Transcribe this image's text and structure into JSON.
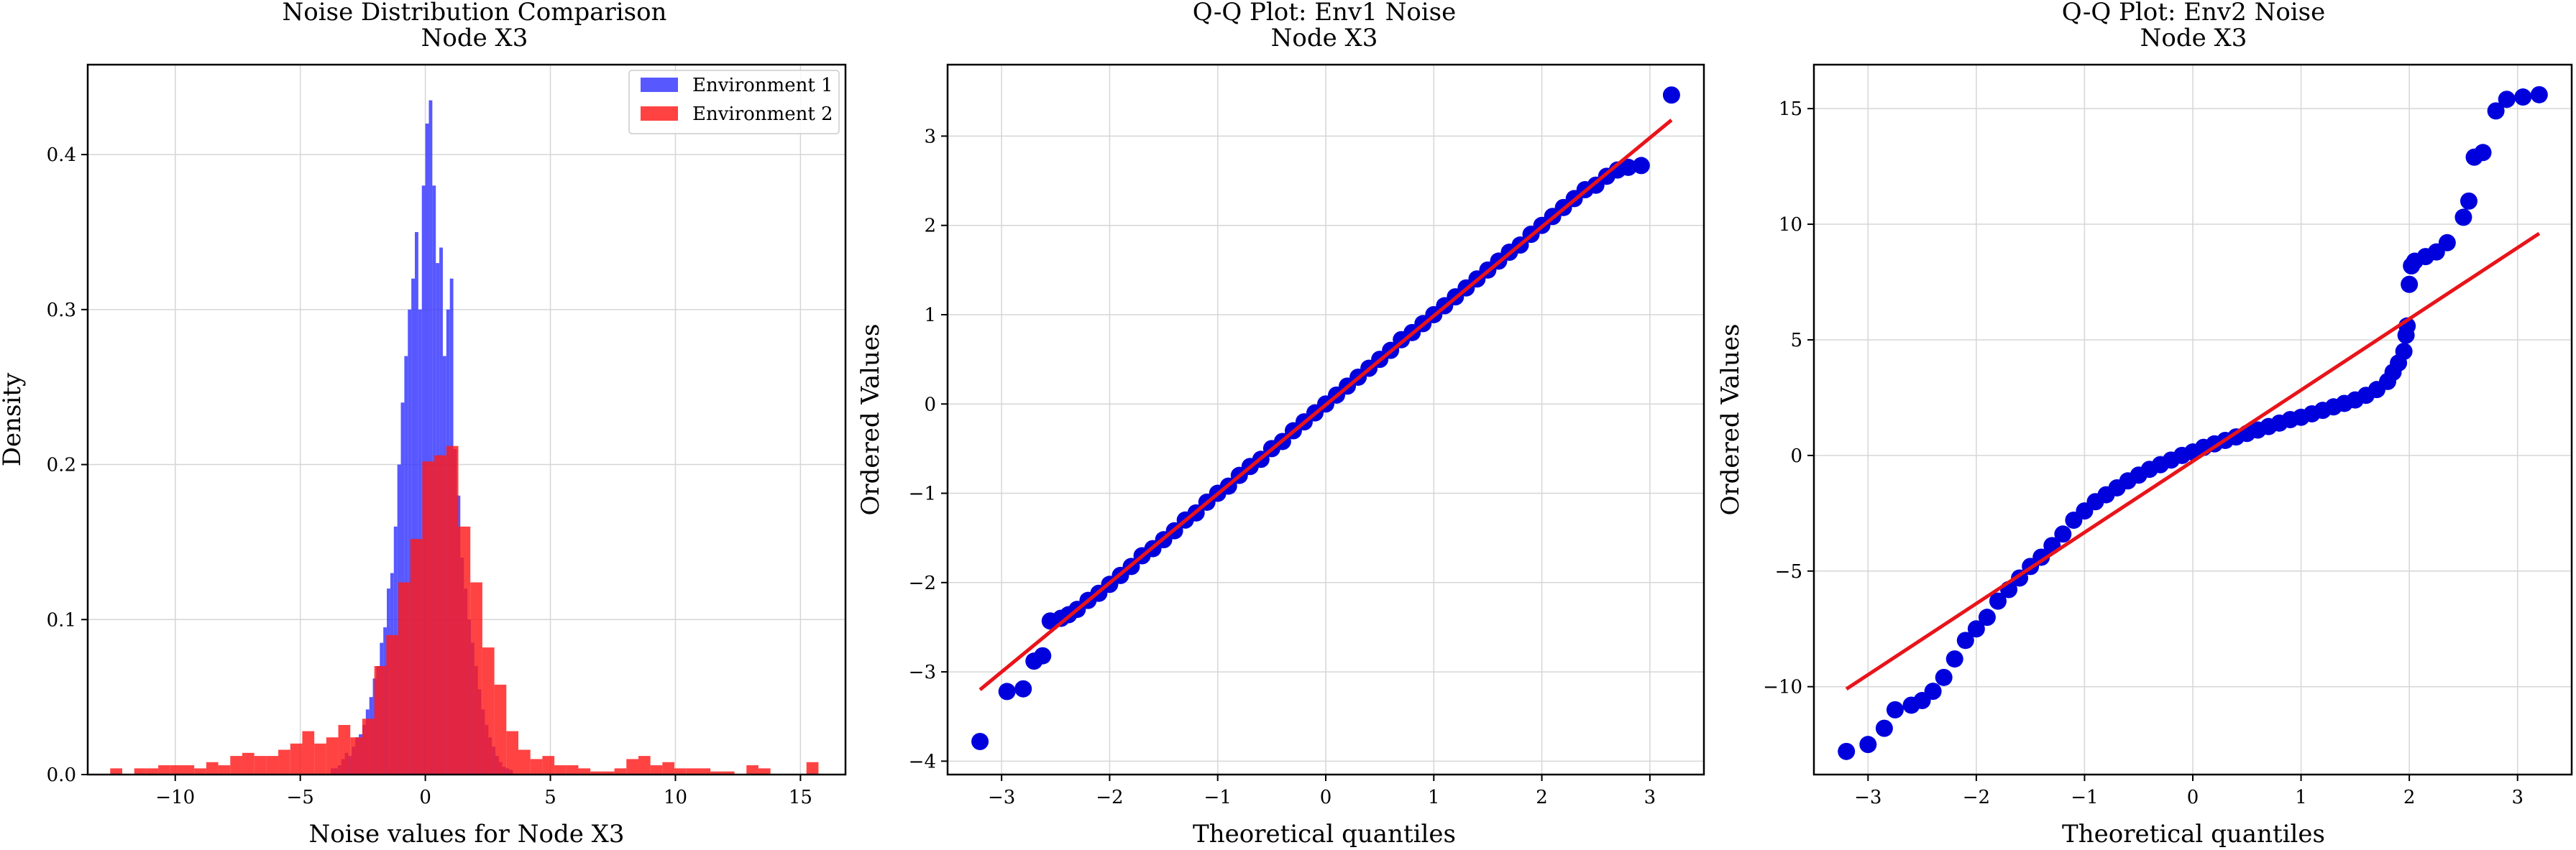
{
  "charts": [
    {
      "type": "bar",
      "subtype": "histogram",
      "title_line1": "Noise Distribution Comparison",
      "title_line2": "Node X3",
      "xlabel": "Noise values for Node X3",
      "ylabel": "Density",
      "xlim": [
        -13.5,
        16.8
      ],
      "ylim": [
        0,
        0.458
      ],
      "xticks": [
        -10,
        -5,
        0,
        5,
        10,
        15
      ],
      "yticks": [
        0.0,
        0.1,
        0.2,
        0.3,
        0.4
      ],
      "xtick_labels": [
        "−10",
        "−5",
        "0",
        "5",
        "10",
        "15"
      ],
      "ytick_labels": [
        "0.0",
        "0.1",
        "0.2",
        "0.3",
        "0.4"
      ],
      "grid": true,
      "legend": "top-right",
      "series": [
        {
          "name": "Environment 1",
          "color": "#3333ff",
          "bin_width": 0.14,
          "bins": [
            [
              -3.78,
              0.004
            ],
            [
              -3.64,
              0.004
            ],
            [
              -3.5,
              0.006
            ],
            [
              -3.36,
              0.01
            ],
            [
              -3.22,
              0.014
            ],
            [
              -3.08,
              0.012
            ],
            [
              -2.94,
              0.018
            ],
            [
              -2.8,
              0.024
            ],
            [
              -2.66,
              0.026
            ],
            [
              -2.52,
              0.032
            ],
            [
              -2.38,
              0.042
            ],
            [
              -2.24,
              0.05
            ],
            [
              -2.1,
              0.062
            ],
            [
              -1.96,
              0.07
            ],
            [
              -1.82,
              0.085
            ],
            [
              -1.68,
              0.095
            ],
            [
              -1.54,
              0.12
            ],
            [
              -1.4,
              0.13
            ],
            [
              -1.26,
              0.16
            ],
            [
              -1.12,
              0.2
            ],
            [
              -0.98,
              0.24
            ],
            [
              -0.84,
              0.27
            ],
            [
              -0.7,
              0.3
            ],
            [
              -0.56,
              0.32
            ],
            [
              -0.42,
              0.35
            ],
            [
              -0.28,
              0.3
            ],
            [
              -0.14,
              0.38
            ],
            [
              0.0,
              0.42
            ],
            [
              0.14,
              0.435
            ],
            [
              0.28,
              0.38
            ],
            [
              0.42,
              0.33
            ],
            [
              0.56,
              0.34
            ],
            [
              0.7,
              0.27
            ],
            [
              0.84,
              0.3
            ],
            [
              0.98,
              0.32
            ],
            [
              1.12,
              0.21
            ],
            [
              1.26,
              0.18
            ],
            [
              1.4,
              0.14
            ],
            [
              1.54,
              0.12
            ],
            [
              1.68,
              0.1
            ],
            [
              1.82,
              0.085
            ],
            [
              1.96,
              0.07
            ],
            [
              2.1,
              0.055
            ],
            [
              2.24,
              0.042
            ],
            [
              2.38,
              0.032
            ],
            [
              2.52,
              0.024
            ],
            [
              2.66,
              0.018
            ],
            [
              2.8,
              0.012
            ],
            [
              2.94,
              0.008
            ],
            [
              3.08,
              0.005
            ],
            [
              3.22,
              0.004
            ],
            [
              3.36,
              0.003
            ]
          ]
        },
        {
          "name": "Environment 2",
          "color": "#ff1a1a",
          "bin_width": 0.48,
          "bins": [
            [
              -12.6,
              0.004
            ],
            [
              -12.12,
              0.0
            ],
            [
              -11.64,
              0.004
            ],
            [
              -11.16,
              0.004
            ],
            [
              -10.68,
              0.006
            ],
            [
              -10.2,
              0.006
            ],
            [
              -9.72,
              0.006
            ],
            [
              -9.24,
              0.004
            ],
            [
              -8.76,
              0.008
            ],
            [
              -8.28,
              0.006
            ],
            [
              -7.8,
              0.012
            ],
            [
              -7.32,
              0.014
            ],
            [
              -6.84,
              0.012
            ],
            [
              -6.36,
              0.012
            ],
            [
              -5.88,
              0.016
            ],
            [
              -5.4,
              0.02
            ],
            [
              -4.92,
              0.028
            ],
            [
              -4.44,
              0.02
            ],
            [
              -3.96,
              0.024
            ],
            [
              -3.48,
              0.032
            ],
            [
              -3.0,
              0.024
            ],
            [
              -2.52,
              0.036
            ],
            [
              -2.04,
              0.07
            ],
            [
              -1.56,
              0.09
            ],
            [
              -1.08,
              0.124
            ],
            [
              -0.6,
              0.152
            ],
            [
              -0.12,
              0.202
            ],
            [
              0.36,
              0.206
            ],
            [
              0.84,
              0.212
            ],
            [
              1.32,
              0.16
            ],
            [
              1.8,
              0.124
            ],
            [
              2.28,
              0.082
            ],
            [
              2.76,
              0.058
            ],
            [
              3.24,
              0.028
            ],
            [
              3.72,
              0.016
            ],
            [
              4.2,
              0.01
            ],
            [
              4.68,
              0.012
            ],
            [
              5.16,
              0.006
            ],
            [
              5.64,
              0.006
            ],
            [
              6.12,
              0.004
            ],
            [
              6.6,
              0.002
            ],
            [
              7.08,
              0.002
            ],
            [
              7.56,
              0.004
            ],
            [
              8.04,
              0.01
            ],
            [
              8.52,
              0.012
            ],
            [
              9.0,
              0.006
            ],
            [
              9.48,
              0.008
            ],
            [
              9.96,
              0.004
            ],
            [
              10.44,
              0.004
            ],
            [
              10.92,
              0.004
            ],
            [
              11.4,
              0.002
            ],
            [
              11.88,
              0.002
            ],
            [
              12.36,
              0.0
            ],
            [
              12.84,
              0.006
            ],
            [
              13.32,
              0.004
            ],
            [
              13.8,
              0.0
            ],
            [
              14.28,
              0.0
            ],
            [
              14.76,
              0.0
            ],
            [
              15.24,
              0.008
            ]
          ]
        }
      ]
    },
    {
      "type": "scatter",
      "subtype": "qq",
      "title_line1": "Q-Q Plot: Env1 Noise",
      "title_line2": "Node X3",
      "xlabel": "Theoretical quantiles",
      "ylabel": "Ordered Values",
      "xlim": [
        -3.5,
        3.5
      ],
      "ylim": [
        -4.15,
        3.8
      ],
      "xticks": [
        -3,
        -2,
        -1,
        0,
        1,
        2,
        3
      ],
      "yticks": [
        -4,
        -3,
        -2,
        -1,
        0,
        1,
        2,
        3
      ],
      "xtick_labels": [
        "−3",
        "−2",
        "−1",
        "0",
        "1",
        "2",
        "3"
      ],
      "ytick_labels": [
        "−4",
        "−3",
        "−2",
        "−1",
        "0",
        "1",
        "2",
        "3"
      ],
      "grid": true,
      "point_color": "#0000dd",
      "line_color": "#e8141a",
      "fit_line": [
        [
          -3.2,
          -3.2
        ],
        [
          3.2,
          3.18
        ]
      ],
      "points": [
        [
          -3.2,
          -3.78
        ],
        [
          -2.95,
          -3.22
        ],
        [
          -2.8,
          -3.19
        ],
        [
          -2.7,
          -2.88
        ],
        [
          -2.62,
          -2.82
        ],
        [
          -2.55,
          -2.43
        ],
        [
          -2.45,
          -2.4
        ],
        [
          -2.38,
          -2.36
        ],
        [
          -2.3,
          -2.3
        ],
        [
          -2.2,
          -2.2
        ],
        [
          -2.1,
          -2.12
        ],
        [
          -2.0,
          -2.02
        ],
        [
          -1.9,
          -1.92
        ],
        [
          -1.8,
          -1.82
        ],
        [
          -1.7,
          -1.7
        ],
        [
          -1.6,
          -1.62
        ],
        [
          -1.5,
          -1.52
        ],
        [
          -1.4,
          -1.42
        ],
        [
          -1.3,
          -1.3
        ],
        [
          -1.2,
          -1.22
        ],
        [
          -1.1,
          -1.1
        ],
        [
          -1.0,
          -1.0
        ],
        [
          -0.9,
          -0.92
        ],
        [
          -0.8,
          -0.8
        ],
        [
          -0.7,
          -0.7
        ],
        [
          -0.6,
          -0.62
        ],
        [
          -0.5,
          -0.5
        ],
        [
          -0.4,
          -0.42
        ],
        [
          -0.3,
          -0.3
        ],
        [
          -0.2,
          -0.2
        ],
        [
          -0.1,
          -0.1
        ],
        [
          0.0,
          0.0
        ],
        [
          0.1,
          0.1
        ],
        [
          0.2,
          0.2
        ],
        [
          0.3,
          0.3
        ],
        [
          0.4,
          0.4
        ],
        [
          0.5,
          0.5
        ],
        [
          0.6,
          0.6
        ],
        [
          0.7,
          0.72
        ],
        [
          0.8,
          0.8
        ],
        [
          0.9,
          0.9
        ],
        [
          1.0,
          1.0
        ],
        [
          1.1,
          1.1
        ],
        [
          1.2,
          1.2
        ],
        [
          1.3,
          1.3
        ],
        [
          1.4,
          1.4
        ],
        [
          1.5,
          1.5
        ],
        [
          1.6,
          1.6
        ],
        [
          1.7,
          1.7
        ],
        [
          1.8,
          1.78
        ],
        [
          1.9,
          1.9
        ],
        [
          2.0,
          2.0
        ],
        [
          2.1,
          2.1
        ],
        [
          2.2,
          2.2
        ],
        [
          2.3,
          2.3
        ],
        [
          2.4,
          2.4
        ],
        [
          2.5,
          2.45
        ],
        [
          2.6,
          2.55
        ],
        [
          2.7,
          2.62
        ],
        [
          2.8,
          2.65
        ],
        [
          2.92,
          2.67
        ],
        [
          3.2,
          3.46
        ]
      ]
    },
    {
      "type": "scatter",
      "subtype": "qq",
      "title_line1": "Q-Q Plot: Env2 Noise",
      "title_line2": "Node X3",
      "xlabel": "Theoretical quantiles",
      "ylabel": "Ordered Values",
      "xlim": [
        -3.5,
        3.5
      ],
      "ylim": [
        -13.8,
        16.9
      ],
      "xticks": [
        -3,
        -2,
        -1,
        0,
        1,
        2,
        3
      ],
      "yticks": [
        -10,
        -5,
        0,
        5,
        10,
        15
      ],
      "xtick_labels": [
        "−3",
        "−2",
        "−1",
        "0",
        "1",
        "2",
        "3"
      ],
      "ytick_labels": [
        "−10",
        "−5",
        "0",
        "5",
        "10",
        "15"
      ],
      "grid": true,
      "point_color": "#0000dd",
      "line_color": "#e8141a",
      "fit_line": [
        [
          -3.2,
          -10.1
        ],
        [
          3.2,
          9.6
        ]
      ],
      "points": [
        [
          -3.2,
          -12.8
        ],
        [
          -3.0,
          -12.5
        ],
        [
          -2.85,
          -11.8
        ],
        [
          -2.75,
          -11.0
        ],
        [
          -2.6,
          -10.8
        ],
        [
          -2.5,
          -10.6
        ],
        [
          -2.4,
          -10.2
        ],
        [
          -2.3,
          -9.6
        ],
        [
          -2.2,
          -8.8
        ],
        [
          -2.1,
          -8.0
        ],
        [
          -2.0,
          -7.5
        ],
        [
          -1.9,
          -7.0
        ],
        [
          -1.8,
          -6.3
        ],
        [
          -1.7,
          -5.8
        ],
        [
          -1.6,
          -5.3
        ],
        [
          -1.5,
          -4.8
        ],
        [
          -1.4,
          -4.4
        ],
        [
          -1.3,
          -3.9
        ],
        [
          -1.2,
          -3.4
        ],
        [
          -1.1,
          -2.8
        ],
        [
          -1.0,
          -2.4
        ],
        [
          -0.9,
          -2.0
        ],
        [
          -0.8,
          -1.7
        ],
        [
          -0.7,
          -1.4
        ],
        [
          -0.6,
          -1.1
        ],
        [
          -0.5,
          -0.85
        ],
        [
          -0.4,
          -0.6
        ],
        [
          -0.3,
          -0.4
        ],
        [
          -0.2,
          -0.2
        ],
        [
          -0.1,
          0.0
        ],
        [
          0.0,
          0.15
        ],
        [
          0.1,
          0.35
        ],
        [
          0.2,
          0.5
        ],
        [
          0.3,
          0.65
        ],
        [
          0.4,
          0.8
        ],
        [
          0.5,
          0.95
        ],
        [
          0.6,
          1.1
        ],
        [
          0.7,
          1.25
        ],
        [
          0.8,
          1.4
        ],
        [
          0.9,
          1.55
        ],
        [
          1.0,
          1.65
        ],
        [
          1.1,
          1.8
        ],
        [
          1.2,
          1.95
        ],
        [
          1.3,
          2.1
        ],
        [
          1.4,
          2.25
        ],
        [
          1.5,
          2.4
        ],
        [
          1.6,
          2.6
        ],
        [
          1.7,
          2.85
        ],
        [
          1.8,
          3.2
        ],
        [
          1.85,
          3.6
        ],
        [
          1.9,
          4.0
        ],
        [
          1.95,
          4.5
        ],
        [
          1.97,
          5.2
        ],
        [
          1.98,
          5.6
        ],
        [
          2.0,
          7.4
        ],
        [
          2.02,
          8.2
        ],
        [
          2.05,
          8.4
        ],
        [
          2.15,
          8.6
        ],
        [
          2.25,
          8.8
        ],
        [
          2.35,
          9.2
        ],
        [
          2.5,
          10.3
        ],
        [
          2.55,
          11.0
        ],
        [
          2.6,
          12.9
        ],
        [
          2.68,
          13.1
        ],
        [
          2.8,
          14.9
        ],
        [
          2.9,
          15.4
        ],
        [
          3.05,
          15.5
        ],
        [
          3.2,
          15.6
        ]
      ]
    }
  ]
}
